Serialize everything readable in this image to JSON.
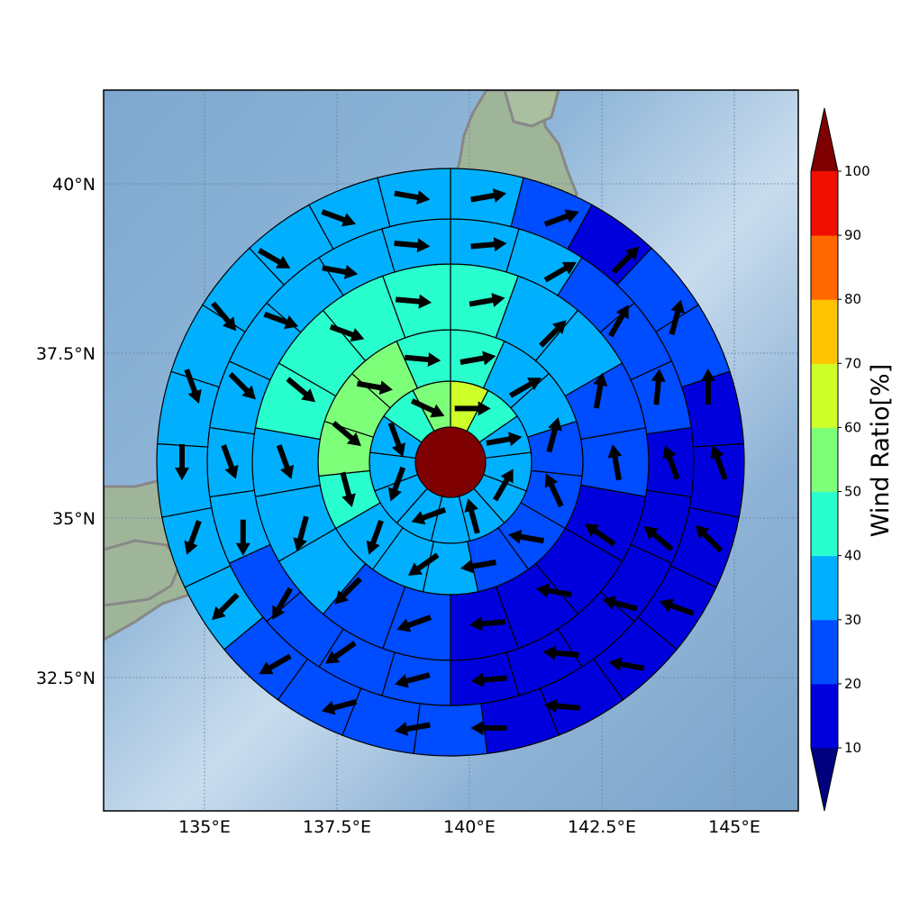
{
  "map": {
    "lon_ticks": [
      "135°E",
      "137.5°E",
      "140°E",
      "142.5°E",
      "145°E"
    ],
    "lat_ticks": [
      "40°N",
      "37.5°N",
      "35°N",
      "32.5°N"
    ],
    "center_color": "#7f0000",
    "ocean_color": "#8fb3d4",
    "land_color": "#9fb59a",
    "coast_color": "#888888"
  },
  "colorbar": {
    "title": "Wind Ratio[%]",
    "levels": [
      "10",
      "20",
      "30",
      "40",
      "50",
      "60",
      "70",
      "80",
      "90",
      "100"
    ],
    "colors": [
      "#0000dd",
      "#004cff",
      "#00b0ff",
      "#29ffce",
      "#7dff7a",
      "#ceff29",
      "#ffc400",
      "#ff6800",
      "#f00f00",
      "#7f0000"
    ],
    "under_color": "#00007f",
    "over_color": "#7f0000"
  },
  "rings": [
    {
      "ratios": [
        65,
        45,
        35,
        35,
        35,
        35,
        35,
        35,
        35,
        35,
        35,
        45,
        55
      ]
    },
    {
      "ratios": [
        45,
        35,
        35,
        25,
        25,
        25,
        25,
        35,
        35,
        35,
        45,
        55,
        55,
        55,
        45
      ]
    },
    {
      "ratios": [
        45,
        35,
        35,
        25,
        25,
        15,
        15,
        15,
        15,
        25,
        25,
        35,
        35,
        35,
        45,
        45,
        45,
        45
      ]
    },
    {
      "ratios": [
        35,
        35,
        25,
        25,
        25,
        15,
        15,
        15,
        15,
        15,
        15,
        25,
        25,
        25,
        25,
        35,
        35,
        35,
        35,
        35,
        35,
        35
      ]
    },
    {
      "ratios": [
        35,
        25,
        15,
        25,
        25,
        15,
        15,
        15,
        15,
        15,
        15,
        15,
        25,
        25,
        25,
        25,
        35,
        35,
        35,
        35,
        35,
        35,
        35,
        35,
        35
      ]
    }
  ],
  "arrow_dirs": [
    [
      90,
      80,
      30,
      345,
      250,
      200,
      160,
      115
    ],
    [
      80,
      60,
      15,
      335,
      280,
      260,
      235,
      200,
      165,
      130,
      100,
      95
    ],
    [
      80,
      45,
      10,
      350,
      305,
      280,
      265,
      250,
      225,
      195,
      160,
      130,
      110,
      95
    ],
    [
      85,
      60,
      30,
      5,
      340,
      310,
      285,
      275,
      265,
      255,
      235,
      210,
      180,
      160,
      135,
      110,
      100,
      95
    ],
    [
      80,
      70,
      45,
      15,
      0,
      340,
      315,
      290,
      280,
      275,
      270,
      260,
      255,
      240,
      225,
      200,
      180,
      160,
      140,
      120,
      110,
      100
    ]
  ]
}
